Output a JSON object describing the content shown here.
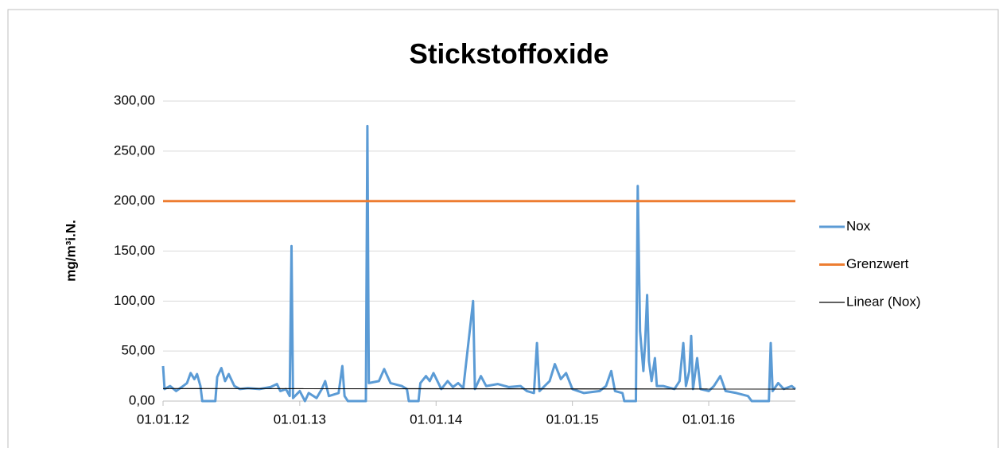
{
  "chart_data": {
    "type": "line",
    "title": "Stickstoffoxide",
    "y_label": "mg/m³i.N.",
    "xlim": [
      "01.01.12",
      "20.08.16"
    ],
    "xticks": [
      "01.01.12",
      "01.01.13",
      "01.01.14",
      "01.01.15",
      "01.01.16"
    ],
    "ylim": [
      0,
      300
    ],
    "yticks": [
      {
        "value": 0,
        "label": "0,00"
      },
      {
        "value": 50,
        "label": "50,00"
      },
      {
        "value": 100,
        "label": "100,00"
      },
      {
        "value": 150,
        "label": "150,00"
      },
      {
        "value": 200,
        "label": "200,00"
      },
      {
        "value": 250,
        "label": "250,00"
      },
      {
        "value": 300,
        "label": "300,00"
      }
    ],
    "grid": true,
    "legend": "right",
    "series": [
      {
        "name": "Nox",
        "color": "#5b9bd5",
        "width": 3,
        "x": [
          "01.01.12",
          "05.01.12",
          "20.01.12",
          "05.02.12",
          "20.02.12",
          "05.03.12",
          "15.03.12",
          "25.03.12",
          "01.04.12",
          "10.04.12",
          "15.04.12",
          "20.05.12",
          "25.05.12",
          "05.06.12",
          "15.06.12",
          "25.06.12",
          "10.07.12",
          "25.07.12",
          "15.08.12",
          "15.09.12",
          "15.10.12",
          "01.11.12",
          "10.11.12",
          "25.11.12",
          "05.12.12",
          "10.12.12",
          "14.12.12",
          "01.01.13",
          "15.01.13",
          "25.01.13",
          "15.02.13",
          "01.03.13",
          "10.03.13",
          "20.03.13",
          "15.04.13",
          "25.04.13",
          "01.05.13",
          "10.05.13",
          "27.06.13",
          "01.07.13",
          "05.07.13",
          "01.08.13",
          "15.08.13",
          "01.09.13",
          "01.10.13",
          "15.10.13",
          "20.10.13",
          "15.11.13",
          "20.11.13",
          "05.12.13",
          "15.12.13",
          "25.12.13",
          "15.01.14",
          "01.02.14",
          "15.02.14",
          "01.03.14",
          "15.03.14",
          "10.04.14",
          "15.04.14",
          "01.05.14",
          "15.05.14",
          "15.06.14",
          "15.07.14",
          "15.08.14",
          "01.09.14",
          "20.09.14",
          "28.09.14",
          "05.10.14",
          "01.11.14",
          "15.11.14",
          "01.12.14",
          "15.12.14",
          "01.01.15",
          "01.02.15",
          "15.03.15",
          "01.04.15",
          "15.04.15",
          "25.04.15",
          "15.05.15",
          "20.05.15",
          "20.06.15",
          "25.06.15",
          "01.07.15",
          "10.07.15",
          "15.07.15",
          "20.07.15",
          "25.07.15",
          "01.08.15",
          "10.08.15",
          "15.08.15",
          "01.09.15",
          "01.10.15",
          "15.10.15",
          "25.10.15",
          "01.11.15",
          "10.11.15",
          "15.11.15",
          "20.11.15",
          "01.12.15",
          "10.12.15",
          "01.01.16",
          "15.01.16",
          "01.02.16",
          "15.02.16",
          "15.03.16",
          "15.04.16",
          "25.04.16",
          "15.05.16",
          "10.06.16",
          "15.06.16",
          "20.06.16",
          "05.07.16",
          "20.07.16",
          "10.08.16",
          "20.08.16"
        ],
        "values": [
          35,
          12,
          15,
          10,
          14,
          18,
          28,
          22,
          27,
          15,
          0,
          0,
          24,
          33,
          20,
          27,
          15,
          12,
          13,
          12,
          14,
          17,
          10,
          12,
          5,
          155,
          3,
          10,
          0,
          8,
          3,
          12,
          20,
          5,
          8,
          35,
          5,
          0,
          0,
          275,
          18,
          20,
          32,
          18,
          15,
          12,
          0,
          0,
          18,
          25,
          20,
          28,
          12,
          20,
          14,
          18,
          13,
          100,
          12,
          25,
          15,
          17,
          14,
          15,
          10,
          8,
          58,
          10,
          20,
          37,
          22,
          28,
          12,
          8,
          10,
          15,
          30,
          10,
          8,
          0,
          0,
          215,
          70,
          30,
          60,
          106,
          40,
          20,
          43,
          15,
          15,
          12,
          20,
          58,
          15,
          30,
          65,
          12,
          43,
          12,
          10,
          15,
          25,
          10,
          8,
          5,
          0,
          0,
          0,
          58,
          10,
          18,
          12,
          15,
          12
        ]
      },
      {
        "name": "Grenzwert",
        "color": "#ed7d31",
        "width": 3,
        "x": [
          "01.01.12",
          "20.08.16"
        ],
        "values": [
          200,
          200
        ]
      },
      {
        "name": "Linear (Nox)",
        "color": "#000000",
        "width": 1.2,
        "x": [
          "01.01.12",
          "20.08.16"
        ],
        "values": [
          12.5,
          12
        ]
      }
    ]
  }
}
